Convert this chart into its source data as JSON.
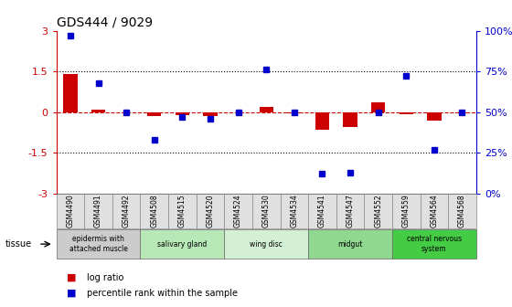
{
  "title": "GDS444 / 9029",
  "samples": [
    "GSM4490",
    "GSM4491",
    "GSM4492",
    "GSM4508",
    "GSM4515",
    "GSM4520",
    "GSM4524",
    "GSM4530",
    "GSM4534",
    "GSM4541",
    "GSM4547",
    "GSM4552",
    "GSM4559",
    "GSM4564",
    "GSM4568"
  ],
  "log_ratio": [
    1.4,
    0.1,
    0.0,
    -0.15,
    -0.12,
    -0.15,
    0.0,
    0.2,
    -0.05,
    -0.65,
    -0.55,
    0.35,
    -0.08,
    -0.3,
    -0.05
  ],
  "percentile": [
    97,
    68,
    50,
    33,
    47,
    46,
    50,
    76,
    50,
    12,
    13,
    50,
    72,
    27,
    50
  ],
  "ylim": [
    -3,
    3
  ],
  "y2lim": [
    0,
    100
  ],
  "dotted_lines": [
    1.5,
    -1.5
  ],
  "bar_color": "#cc0000",
  "dot_color": "#0000cc",
  "tissues": [
    {
      "label": "epidermis with\nattached muscle",
      "start": 0,
      "end": 3,
      "color": "#cccccc"
    },
    {
      "label": "salivary gland",
      "start": 3,
      "end": 6,
      "color": "#b8e8b8"
    },
    {
      "label": "wing disc",
      "start": 6,
      "end": 9,
      "color": "#d4f0d4"
    },
    {
      "label": "midgut",
      "start": 9,
      "end": 12,
      "color": "#90d890"
    },
    {
      "label": "central nervous\nsystem",
      "start": 12,
      "end": 15,
      "color": "#44cc44"
    }
  ],
  "legend_items": [
    {
      "label": "log ratio",
      "color": "#cc0000"
    },
    {
      "label": "percentile rank within the sample",
      "color": "#0000cc"
    }
  ],
  "background_color": "#ffffff",
  "tick_yticks_left": [
    -3,
    -1.5,
    0,
    1.5,
    3
  ],
  "tick_yticks_right": [
    0,
    25,
    50,
    75,
    100
  ]
}
